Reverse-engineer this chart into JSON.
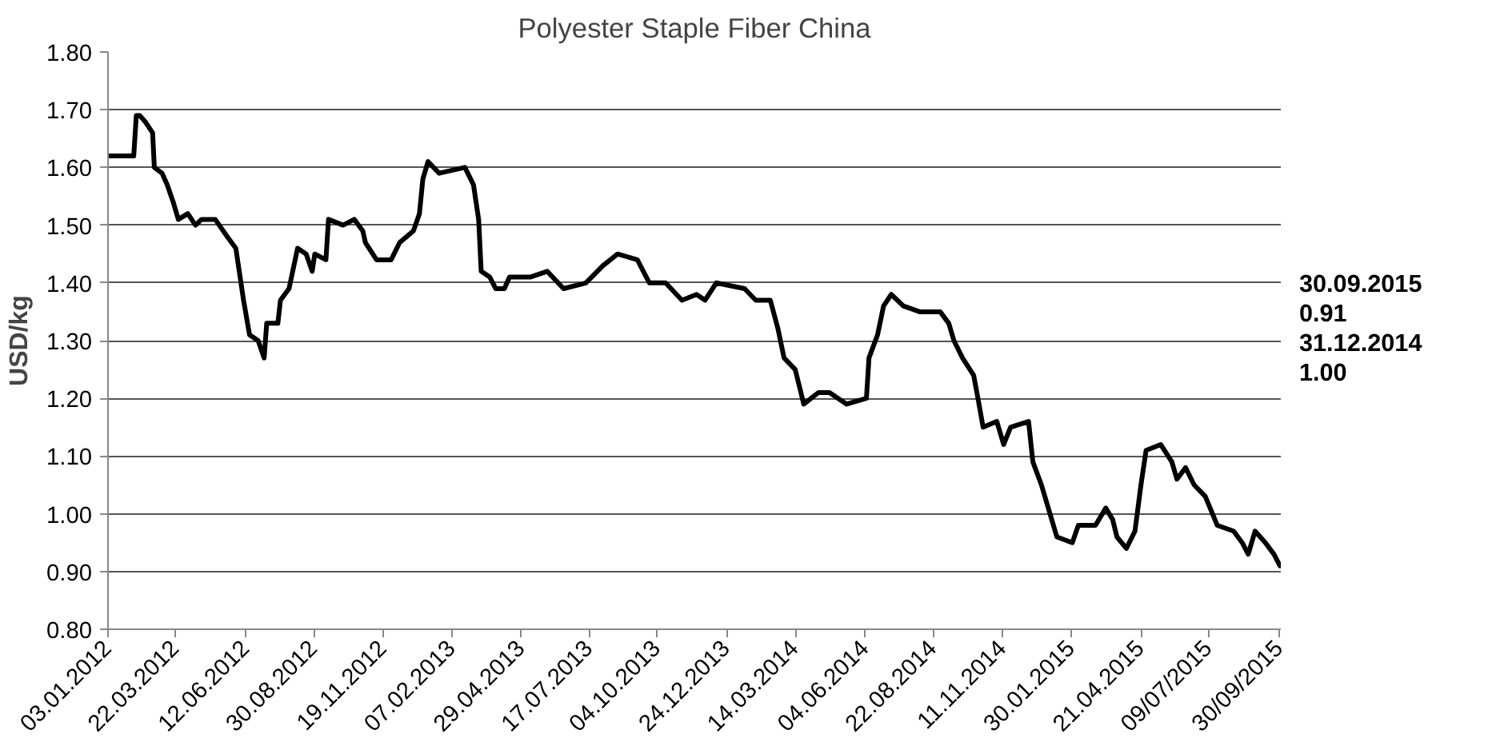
{
  "chart_data": {
    "type": "line",
    "title": "Polyester Staple Fiber China",
    "ylabel": "USD/kg",
    "x": [
      "2012-01-03",
      "2012-02-02",
      "2012-02-05",
      "2012-02-09",
      "2012-02-15",
      "2012-02-24",
      "2012-02-26",
      "2012-03-06",
      "2012-03-12",
      "2012-03-19",
      "2012-03-25",
      "2012-04-05",
      "2012-04-14",
      "2012-04-21",
      "2012-05-07",
      "2012-05-21",
      "2012-05-31",
      "2012-06-04",
      "2012-06-09",
      "2012-06-16",
      "2012-06-26",
      "2012-07-03",
      "2012-07-06",
      "2012-07-19",
      "2012-07-22",
      "2012-08-01",
      "2012-08-11",
      "2012-08-21",
      "2012-08-28",
      "2012-08-31",
      "2012-09-13",
      "2012-09-16",
      "2012-10-03",
      "2012-10-16",
      "2012-10-26",
      "2012-10-29",
      "2012-11-11",
      "2012-11-28",
      "2012-12-08",
      "2012-12-24",
      "2012-12-31",
      "2013-01-04",
      "2013-01-10",
      "2013-01-23",
      "2013-02-22",
      "2013-03-04",
      "2013-03-10",
      "2013-03-13",
      "2013-03-23",
      "2013-03-30",
      "2013-04-09",
      "2013-04-15",
      "2013-05-02",
      "2013-05-09",
      "2013-05-29",
      "2013-06-17",
      "2013-07-13",
      "2013-08-02",
      "2013-08-19",
      "2013-09-11",
      "2013-09-25",
      "2013-10-14",
      "2013-11-02",
      "2013-11-19",
      "2013-11-29",
      "2013-12-12",
      "2014-01-14",
      "2014-01-27",
      "2014-02-13",
      "2014-02-22",
      "2014-03-01",
      "2014-03-14",
      "2014-03-24",
      "2014-04-10",
      "2014-04-23",
      "2014-05-13",
      "2014-06-05",
      "2014-06-08",
      "2014-06-18",
      "2014-06-25",
      "2014-07-04",
      "2014-07-18",
      "2014-08-06",
      "2014-08-20",
      "2014-08-30",
      "2014-09-09",
      "2014-09-15",
      "2014-09-25",
      "2014-10-08",
      "2014-10-13",
      "2014-10-19",
      "2014-11-04",
      "2014-11-12",
      "2014-11-20",
      "2014-12-11",
      "2014-12-16",
      "2014-12-26",
      "2015-01-05",
      "2015-01-13",
      "2015-01-31",
      "2015-02-07",
      "2015-02-27",
      "2015-03-11",
      "2015-03-19",
      "2015-03-24",
      "2015-04-04",
      "2015-04-14",
      "2015-04-21",
      "2015-04-27",
      "2015-05-14",
      "2015-05-27",
      "2015-06-02",
      "2015-06-12",
      "2015-06-22",
      "2015-07-05",
      "2015-07-19",
      "2015-08-07",
      "2015-08-17",
      "2015-08-24",
      "2015-09-01",
      "2015-09-13",
      "2015-09-23",
      "2015-09-30"
    ],
    "series": [
      {
        "color": "#000000",
        "values": [
          1.62,
          1.62,
          1.69,
          1.69,
          1.68,
          1.66,
          1.6,
          1.59,
          1.57,
          1.54,
          1.51,
          1.52,
          1.5,
          1.51,
          1.51,
          1.48,
          1.46,
          1.42,
          1.37,
          1.31,
          1.3,
          1.27,
          1.33,
          1.33,
          1.37,
          1.39,
          1.46,
          1.45,
          1.42,
          1.45,
          1.44,
          1.51,
          1.5,
          1.51,
          1.49,
          1.47,
          1.44,
          1.44,
          1.47,
          1.49,
          1.52,
          1.58,
          1.61,
          1.59,
          1.6,
          1.57,
          1.51,
          1.42,
          1.41,
          1.39,
          1.39,
          1.41,
          1.41,
          1.41,
          1.42,
          1.39,
          1.4,
          1.43,
          1.45,
          1.44,
          1.4,
          1.4,
          1.37,
          1.38,
          1.37,
          1.4,
          1.39,
          1.37,
          1.37,
          1.32,
          1.27,
          1.25,
          1.19,
          1.21,
          1.21,
          1.19,
          1.2,
          1.27,
          1.31,
          1.36,
          1.38,
          1.36,
          1.35,
          1.35,
          1.35,
          1.33,
          1.3,
          1.27,
          1.24,
          1.2,
          1.15,
          1.16,
          1.12,
          1.15,
          1.16,
          1.09,
          1.05,
          1.0,
          0.96,
          0.95,
          0.98,
          0.98,
          1.01,
          0.99,
          0.96,
          0.94,
          0.97,
          1.05,
          1.11,
          1.12,
          1.09,
          1.06,
          1.08,
          1.05,
          1.03,
          0.98,
          0.97,
          0.95,
          0.93,
          0.97,
          0.95,
          0.93,
          0.91
        ]
      }
    ],
    "xlim": [
      "2012-01-03",
      "2015-10-01"
    ],
    "xticks": [
      {
        "value": "2012-01-03",
        "label": "03.01.2012"
      },
      {
        "value": "2012-03-22",
        "label": "22.03.2012"
      },
      {
        "value": "2012-06-12",
        "label": "12.06.2012"
      },
      {
        "value": "2012-08-30",
        "label": "30.08.2012"
      },
      {
        "value": "2012-11-19",
        "label": "19.11.2012"
      },
      {
        "value": "2013-02-07",
        "label": "07.02.2013"
      },
      {
        "value": "2013-04-29",
        "label": "29.04.2013"
      },
      {
        "value": "2013-07-17",
        "label": "17.07.2013"
      },
      {
        "value": "2013-10-04",
        "label": "04.10.2013"
      },
      {
        "value": "2013-12-24",
        "label": "24.12.2013"
      },
      {
        "value": "2014-03-14",
        "label": "14.03.2014"
      },
      {
        "value": "2014-06-04",
        "label": "04.06.2014"
      },
      {
        "value": "2014-08-22",
        "label": "22.08.2014"
      },
      {
        "value": "2014-11-11",
        "label": "11.11.2014"
      },
      {
        "value": "2015-01-30",
        "label": "30.01.2015"
      },
      {
        "value": "2015-04-21",
        "label": "21.04.2015"
      },
      {
        "value": "2015-07-09",
        "label": "09/07/2015"
      },
      {
        "value": "2015-09-30",
        "label": "30/09/2015"
      }
    ],
    "ylim": [
      0.8,
      1.8
    ],
    "yticks": [
      {
        "value": 0.8,
        "label": "0.80"
      },
      {
        "value": 0.9,
        "label": "0.90"
      },
      {
        "value": 1.0,
        "label": "1.00"
      },
      {
        "value": 1.1,
        "label": "1.10"
      },
      {
        "value": 1.2,
        "label": "1.20"
      },
      {
        "value": 1.3,
        "label": "1.30"
      },
      {
        "value": 1.4,
        "label": "1.40"
      },
      {
        "value": 1.5,
        "label": "1.50"
      },
      {
        "value": 1.6,
        "label": "1.60"
      },
      {
        "value": 1.7,
        "label": "1.70"
      },
      {
        "value": 1.8,
        "label": "1.80"
      }
    ],
    "grid": "y",
    "line_style": "solid",
    "annotations": [
      "30.09.2015",
      "0.91",
      "31.12.2014",
      "1.00"
    ]
  }
}
